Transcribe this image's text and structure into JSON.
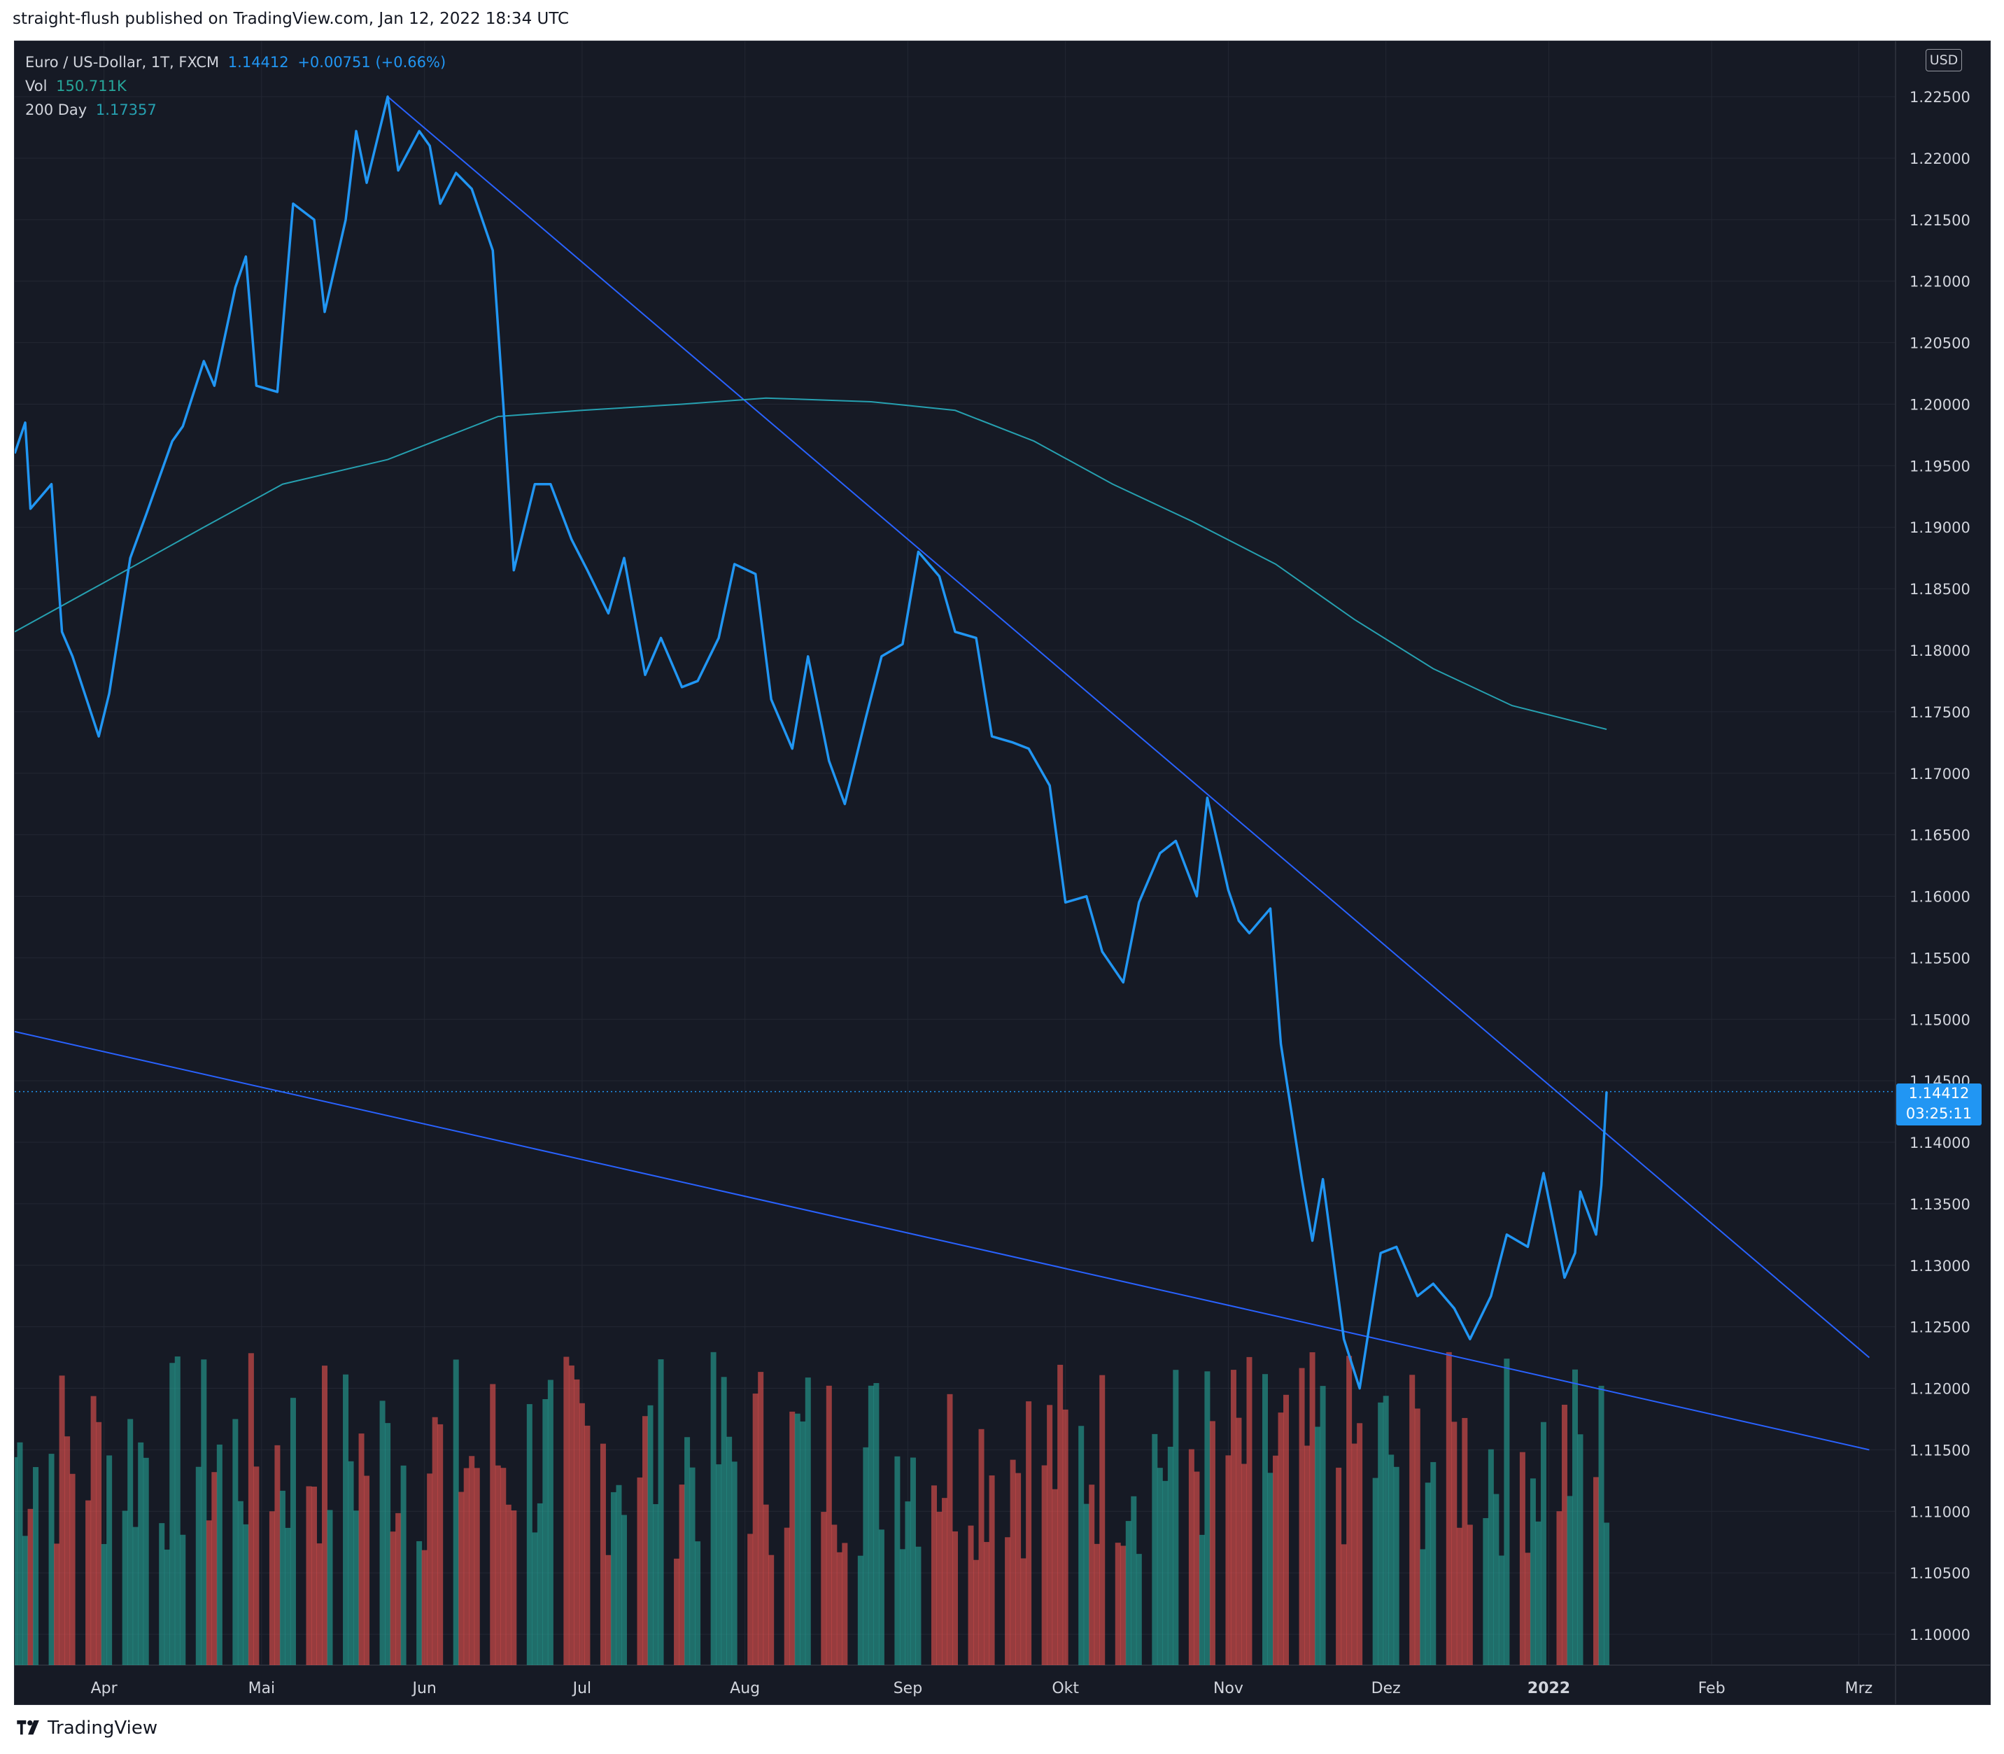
{
  "header": {
    "published": "straight-flush published on TradingView.com, Jan 12, 2022 18:34 UTC"
  },
  "legend": {
    "symbol": "Euro / US-Dollar, 1T, FXCM",
    "last": "1.14412",
    "change": "+0.00751 (+0.66%)",
    "vol_label": "Vol",
    "vol_value": "150.711K",
    "ma_label": "200 Day",
    "ma_value": "1.17357"
  },
  "price_scale": {
    "currency": "USD",
    "last_price": "1.14412",
    "countdown": "03:25:11"
  },
  "footer": {
    "brand": "TradingView"
  },
  "colors": {
    "background": "#161a25",
    "price_line": "#2196f3",
    "ma_line": "#26a0b0",
    "trendline": "#2962ff",
    "volume_up": "#26a69a",
    "volume_down": "#ef5350",
    "text": "#d1d4dc"
  },
  "chart_data": {
    "type": "line",
    "x_tick_labels": [
      "Apr",
      "Mai",
      "Jun",
      "Jul",
      "Aug",
      "Sep",
      "Okt",
      "Nov",
      "Dez",
      "2022",
      "Feb",
      "Mrz"
    ],
    "y_tick_labels": [
      "1.10000",
      "1.10500",
      "1.11000",
      "1.11500",
      "1.12000",
      "1.12500",
      "1.13000",
      "1.13500",
      "1.14000",
      "1.14500",
      "1.15000",
      "1.15500",
      "1.16000",
      "1.16500",
      "1.17000",
      "1.17500",
      "1.18000",
      "1.18500",
      "1.19000",
      "1.19500",
      "1.20000",
      "1.20500",
      "1.21000",
      "1.21500",
      "1.22000",
      "1.22500"
    ],
    "ylim": [
      1.0975,
      1.2295
    ],
    "series": [
      {
        "name": "Euro / US-Dollar, 1T, FXCM",
        "values": [
          [
            "2021-03-15",
            1.196
          ],
          [
            "2021-03-17",
            1.1985
          ],
          [
            "2021-03-18",
            1.1915
          ],
          [
            "2021-03-22",
            1.1935
          ],
          [
            "2021-03-24",
            1.1815
          ],
          [
            "2021-03-26",
            1.1795
          ],
          [
            "2021-03-31",
            1.173
          ],
          [
            "2021-04-02",
            1.1765
          ],
          [
            "2021-04-06",
            1.1875
          ],
          [
            "2021-04-09",
            1.191
          ],
          [
            "2021-04-14",
            1.197
          ],
          [
            "2021-04-16",
            1.1982
          ],
          [
            "2021-04-20",
            1.2035
          ],
          [
            "2021-04-22",
            1.2015
          ],
          [
            "2021-04-26",
            1.2095
          ],
          [
            "2021-04-28",
            1.212
          ],
          [
            "2021-04-30",
            1.2015
          ],
          [
            "2021-05-04",
            1.201
          ],
          [
            "2021-05-07",
            1.2163
          ],
          [
            "2021-05-11",
            1.215
          ],
          [
            "2021-05-13",
            1.2075
          ],
          [
            "2021-05-17",
            1.215
          ],
          [
            "2021-05-19",
            1.2222
          ],
          [
            "2021-05-21",
            1.218
          ],
          [
            "2021-05-25",
            1.225
          ],
          [
            "2021-05-27",
            1.219
          ],
          [
            "2021-05-31",
            1.2222
          ],
          [
            "2021-06-02",
            1.221
          ],
          [
            "2021-06-04",
            1.2163
          ],
          [
            "2021-06-07",
            1.2188
          ],
          [
            "2021-06-10",
            1.2175
          ],
          [
            "2021-06-14",
            1.2125
          ],
          [
            "2021-06-16",
            1.2
          ],
          [
            "2021-06-18",
            1.1865
          ],
          [
            "2021-06-22",
            1.1935
          ],
          [
            "2021-06-25",
            1.1935
          ],
          [
            "2021-06-29",
            1.189
          ],
          [
            "2021-07-02",
            1.1865
          ],
          [
            "2021-07-06",
            1.183
          ],
          [
            "2021-07-09",
            1.1875
          ],
          [
            "2021-07-13",
            1.178
          ],
          [
            "2021-07-16",
            1.181
          ],
          [
            "2021-07-20",
            1.177
          ],
          [
            "2021-07-23",
            1.1775
          ],
          [
            "2021-07-27",
            1.181
          ],
          [
            "2021-07-30",
            1.187
          ],
          [
            "2021-08-03",
            1.1862
          ],
          [
            "2021-08-06",
            1.176
          ],
          [
            "2021-08-10",
            1.172
          ],
          [
            "2021-08-13",
            1.1795
          ],
          [
            "2021-08-17",
            1.171
          ],
          [
            "2021-08-20",
            1.1675
          ],
          [
            "2021-08-24",
            1.1745
          ],
          [
            "2021-08-27",
            1.1795
          ],
          [
            "2021-08-31",
            1.1805
          ],
          [
            "2021-09-03",
            1.188
          ],
          [
            "2021-09-07",
            1.186
          ],
          [
            "2021-09-10",
            1.1815
          ],
          [
            "2021-09-14",
            1.181
          ],
          [
            "2021-09-17",
            1.173
          ],
          [
            "2021-09-21",
            1.1725
          ],
          [
            "2021-09-24",
            1.172
          ],
          [
            "2021-09-28",
            1.169
          ],
          [
            "2021-10-01",
            1.1595
          ],
          [
            "2021-10-05",
            1.16
          ],
          [
            "2021-10-08",
            1.1555
          ],
          [
            "2021-10-12",
            1.153
          ],
          [
            "2021-10-15",
            1.1595
          ],
          [
            "2021-10-19",
            1.1635
          ],
          [
            "2021-10-22",
            1.1645
          ],
          [
            "2021-10-26",
            1.16
          ],
          [
            "2021-10-28",
            1.168
          ],
          [
            "2021-11-01",
            1.1605
          ],
          [
            "2021-11-03",
            1.158
          ],
          [
            "2021-11-05",
            1.157
          ],
          [
            "2021-11-09",
            1.159
          ],
          [
            "2021-11-11",
            1.148
          ],
          [
            "2021-11-15",
            1.137
          ],
          [
            "2021-11-17",
            1.132
          ],
          [
            "2021-11-19",
            1.137
          ],
          [
            "2021-11-23",
            1.124
          ],
          [
            "2021-11-26",
            1.12
          ],
          [
            "2021-11-30",
            1.131
          ],
          [
            "2021-12-03",
            1.1315
          ],
          [
            "2021-12-07",
            1.1275
          ],
          [
            "2021-12-10",
            1.1285
          ],
          [
            "2021-12-14",
            1.1265
          ],
          [
            "2021-12-17",
            1.124
          ],
          [
            "2021-12-21",
            1.1275
          ],
          [
            "2021-12-24",
            1.1325
          ],
          [
            "2021-12-28",
            1.1315
          ],
          [
            "2021-12-31",
            1.1375
          ],
          [
            "2022-01-04",
            1.129
          ],
          [
            "2022-01-06",
            1.131
          ],
          [
            "2022-01-07",
            1.136
          ],
          [
            "2022-01-10",
            1.1325
          ],
          [
            "2022-01-11",
            1.1365
          ],
          [
            "2022-01-12",
            1.14412
          ]
        ]
      },
      {
        "name": "200 Day",
        "values": [
          [
            "2021-03-15",
            1.1815
          ],
          [
            "2021-04-01",
            1.1855
          ],
          [
            "2021-04-20",
            1.19
          ],
          [
            "2021-05-05",
            1.1935
          ],
          [
            "2021-05-25",
            1.1955
          ],
          [
            "2021-06-15",
            1.199
          ],
          [
            "2021-07-01",
            1.1995
          ],
          [
            "2021-07-20",
            1.2
          ],
          [
            "2021-08-05",
            1.2005
          ],
          [
            "2021-08-25",
            1.2002
          ],
          [
            "2021-09-10",
            1.1995
          ],
          [
            "2021-09-25",
            1.197
          ],
          [
            "2021-10-10",
            1.1935
          ],
          [
            "2021-10-25",
            1.1905
          ],
          [
            "2021-11-10",
            1.187
          ],
          [
            "2021-11-25",
            1.1825
          ],
          [
            "2021-12-10",
            1.1785
          ],
          [
            "2021-12-25",
            1.1755
          ],
          [
            "2022-01-12",
            1.17357
          ]
        ]
      }
    ],
    "trendlines": [
      {
        "from": [
          "2021-05-25",
          1.225
        ],
        "to": [
          "2022-03-03",
          1.1225
        ]
      },
      {
        "from": [
          "2021-03-15",
          1.149
        ],
        "to": [
          "2022-03-03",
          1.115
        ]
      }
    ],
    "volume": {
      "name": "Vol",
      "last": "150.711K"
    }
  }
}
